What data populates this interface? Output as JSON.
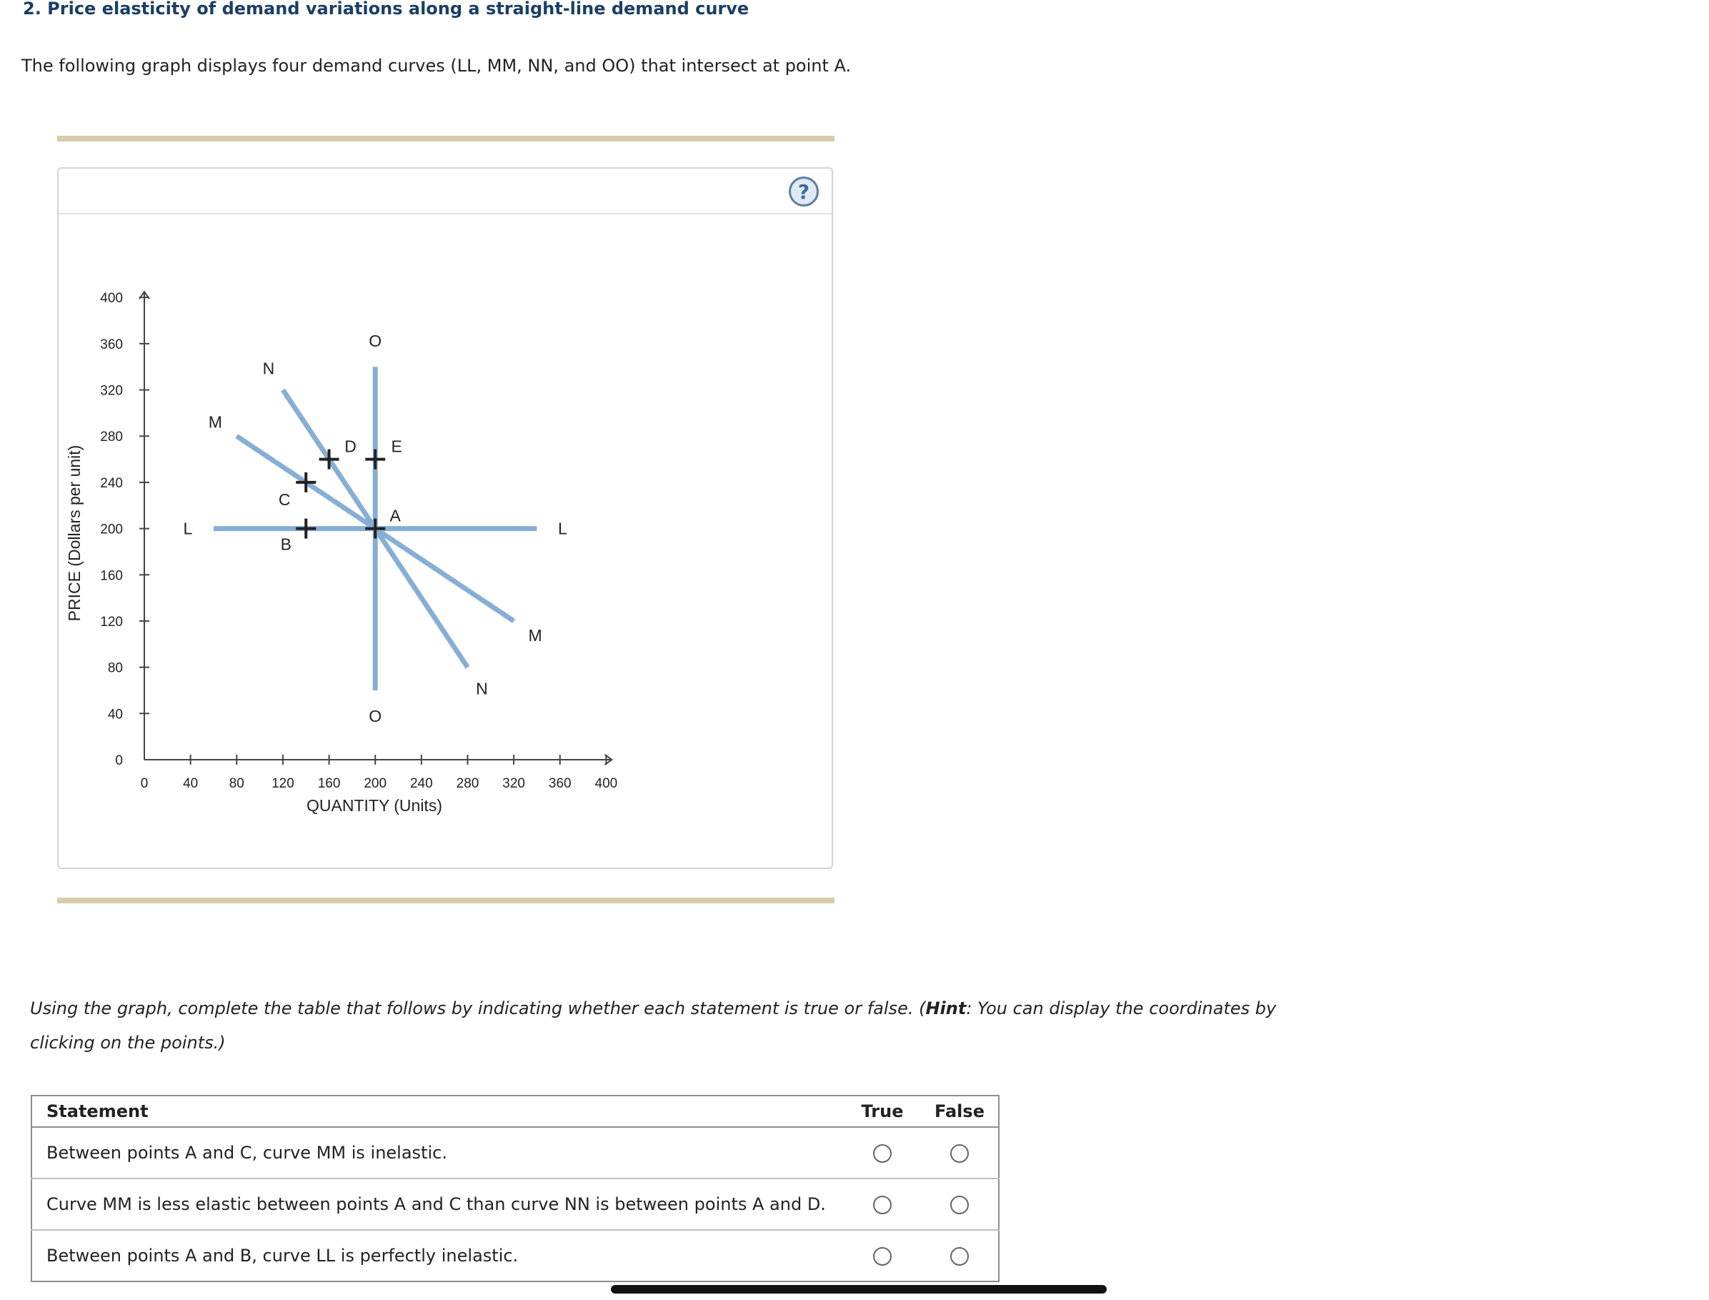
{
  "question": {
    "title": "2. Price elasticity of demand variations along a straight-line demand curve",
    "intro": "The following graph displays four demand curves (LL, MM, NN, and OO) that intersect at point A."
  },
  "graph": {
    "help_label": "?",
    "y_axis_label": "PRICE (Dollars per unit)",
    "x_axis_label": "QUANTITY (Units)",
    "y_ticks": [
      "0",
      "40",
      "80",
      "120",
      "160",
      "200",
      "240",
      "280",
      "320",
      "360",
      "400"
    ],
    "x_ticks": [
      "0",
      "40",
      "80",
      "120",
      "160",
      "200",
      "240",
      "280",
      "320",
      "360",
      "400"
    ],
    "curve_color": "#86aed6",
    "chart_data": {
      "type": "line",
      "xlabel": "QUANTITY (Units)",
      "ylabel": "PRICE (Dollars per unit)",
      "xlim": [
        0,
        400
      ],
      "ylim": [
        0,
        400
      ],
      "series": [
        {
          "name": "LL",
          "points": [
            [
              60,
              200
            ],
            [
              340,
              200
            ]
          ],
          "labels": [
            "L",
            "L"
          ]
        },
        {
          "name": "MM",
          "points": [
            [
              80,
              280
            ],
            [
              320,
              120
            ]
          ],
          "labels": [
            "M",
            "M"
          ]
        },
        {
          "name": "NN",
          "points": [
            [
              120,
              320
            ],
            [
              280,
              80
            ]
          ],
          "labels": [
            "N",
            "N"
          ]
        },
        {
          "name": "OO",
          "points": [
            [
              200,
              340
            ],
            [
              200,
              60
            ]
          ],
          "labels": [
            "O",
            "O"
          ]
        }
      ],
      "points": [
        {
          "label": "A",
          "x": 200,
          "y": 200
        },
        {
          "label": "B",
          "x": 140,
          "y": 200
        },
        {
          "label": "C",
          "x": 140,
          "y": 240
        },
        {
          "label": "D",
          "x": 160,
          "y": 260
        },
        {
          "label": "E",
          "x": 200,
          "y": 260
        }
      ]
    }
  },
  "instructions": {
    "before_hint": "Using the graph, complete the table that follows by indicating whether each statement is true or false. (",
    "hint_word": "Hint",
    "after_hint": ": You can display the coordinates by clicking on the points.)"
  },
  "table": {
    "headers": {
      "statement": "Statement",
      "true": "True",
      "false": "False"
    },
    "rows": [
      "Between points A and C, curve MM is inelastic.",
      "Curve MM is less elastic between points A and C than curve NN is between points A and D.",
      "Between points A and B, curve LL is perfectly inelastic."
    ]
  }
}
